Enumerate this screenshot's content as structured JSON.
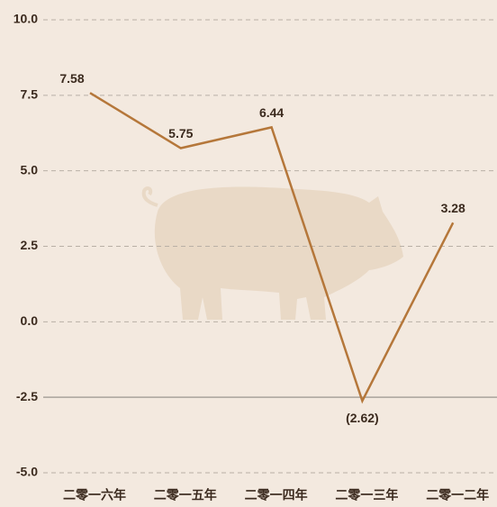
{
  "chart_data": {
    "type": "line",
    "categories": [
      "二零一六年",
      "二零一五年",
      "二零一四年",
      "二零一三年",
      "二零一二年"
    ],
    "values": [
      7.58,
      5.75,
      6.44,
      -2.62,
      3.28
    ],
    "value_labels": [
      "7.58",
      "5.75",
      "6.44",
      "(2.62)",
      "3.28"
    ],
    "color": "#b5773a",
    "ylim": [
      -5,
      10
    ],
    "yticks": [
      {
        "value": 10,
        "label": "10.0"
      },
      7.5,
      {
        "value": 5,
        "label": "5.0"
      },
      2.5,
      {
        "value": 0,
        "label": "0.0"
      },
      -2.5,
      {
        "value": -5,
        "label": "-5.0"
      }
    ],
    "baseline": -2.5,
    "grid": true
  }
}
